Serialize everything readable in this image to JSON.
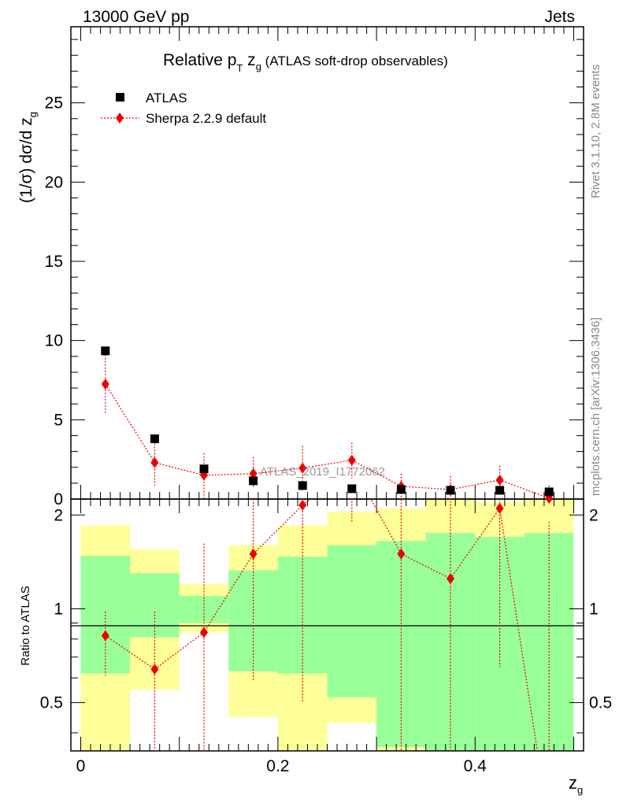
{
  "header": {
    "left": "13000 GeV pp",
    "right": "Jets"
  },
  "title": {
    "main": "Relative p",
    "sub_T": "T",
    "mid": " z",
    "sub_g": "g",
    "tail": " (ATLAS soft-drop observables)"
  },
  "upper_ylabel": {
    "main": "(1/σ) dσ/d z",
    "sub": "g"
  },
  "lower_ylabel": "Ratio to ATLAS",
  "xlabel": {
    "main": "z",
    "sub": "g"
  },
  "watermark": "ATLAS_2019_I1772062",
  "side_labels": {
    "top": "Rivet 3.1.10,  2.8M events",
    "bottom": "mcplots.cern.ch [arXiv:1306.3436]"
  },
  "legend": [
    {
      "label": "ATLAS",
      "marker": "square",
      "color": "#000000"
    },
    {
      "label": "Sherpa 2.2.9 default",
      "marker": "diamond",
      "color": "#ee0000"
    }
  ],
  "upper_ticks": [
    "0",
    "5",
    "10",
    "15",
    "20",
    "25"
  ],
  "lower_ticks": [
    "0.5",
    "1",
    "2"
  ],
  "x_ticks": [
    "0",
    "0.2",
    "0.4"
  ],
  "chart_data": {
    "type": "scatter",
    "x_range": [
      -0.01,
      0.51
    ],
    "upper_ylim": [
      0,
      29.8
    ],
    "lower_ylim": [
      0.35,
      2.25
    ],
    "lower_yscale": "log",
    "bin_edges": [
      0.0,
      0.05,
      0.1,
      0.15,
      0.2,
      0.25,
      0.3,
      0.35,
      0.4,
      0.45,
      0.5
    ],
    "x": [
      0.025,
      0.075,
      0.125,
      0.175,
      0.225,
      0.275,
      0.325,
      0.375,
      0.425,
      0.475
    ],
    "series": [
      {
        "name": "ATLAS",
        "values": [
          9.35,
          3.8,
          1.9,
          1.15,
          0.85,
          0.65,
          0.6,
          0.55,
          0.55,
          0.45
        ]
      },
      {
        "name": "Sherpa 2.2.9 default",
        "values": [
          7.25,
          2.3,
          1.5,
          1.6,
          1.95,
          2.45,
          0.8,
          0.6,
          1.2,
          0.05
        ],
        "err_low": [
          5.4,
          0.85,
          0.0,
          0.75,
          0.55,
          1.3,
          0.0,
          0.0,
          0.35,
          0.0
        ],
        "err_high": [
          9.1,
          3.7,
          2.9,
          2.65,
          3.35,
          3.55,
          1.6,
          1.45,
          2.1,
          0.85
        ]
      }
    ],
    "ratio": {
      "values": [
        0.82,
        0.64,
        0.84,
        1.5,
        2.15,
        2.9,
        1.5,
        1.25,
        2.1,
        0.2
      ],
      "err_low": [
        0.61,
        0.22,
        0.2,
        0.59,
        0.5,
        1.9,
        0.2,
        0.2,
        0.65,
        0.2
      ],
      "err_high": [
        0.98,
        0.98,
        1.62,
        2.25,
        3.6,
        5.0,
        2.7,
        2.55,
        3.5,
        1.9
      ]
    },
    "bands": {
      "green_low": [
        0.62,
        0.81,
        0.9,
        0.63,
        0.62,
        0.52,
        0.36,
        0.2,
        0.2,
        0.2
      ],
      "green_high": [
        1.48,
        1.3,
        1.1,
        1.33,
        1.47,
        1.6,
        1.65,
        1.75,
        1.7,
        1.75
      ],
      "yellow_low": [
        0.3,
        0.55,
        0.84,
        0.45,
        0.3,
        0.43,
        0.2,
        0.2,
        0.2,
        0.2
      ],
      "yellow_high": [
        1.85,
        1.55,
        1.2,
        1.6,
        1.85,
        2.05,
        2.1,
        2.3,
        2.2,
        2.25
      ]
    },
    "colors": {
      "data": "#000000",
      "mc": "#ee0000",
      "band_inner": "#99ff99",
      "band_outer": "#ffff99"
    }
  }
}
